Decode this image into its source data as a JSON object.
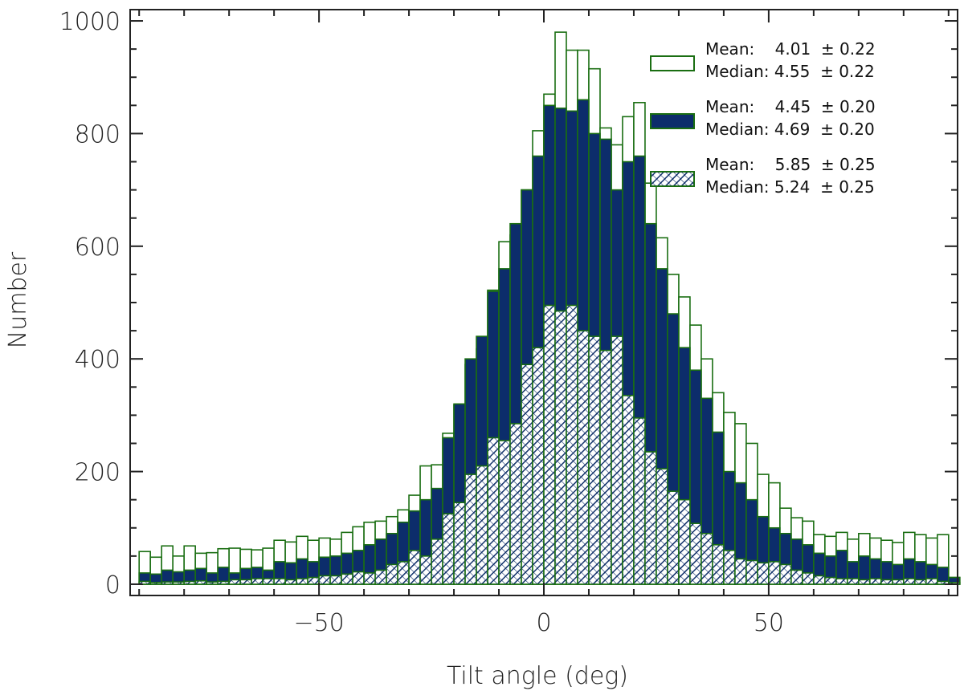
{
  "chart_data": {
    "type": "bar",
    "xlabel": "Tilt angle (deg)",
    "ylabel": "Number",
    "xlim": [
      -92,
      92
    ],
    "ylim": [
      -20,
      1020
    ],
    "xticks": [
      -50,
      0,
      50
    ],
    "yticks": [
      0,
      200,
      400,
      600,
      800,
      1000
    ],
    "xtick_labels": [
      "−50",
      "0",
      "50"
    ],
    "ytick_labels": [
      "0",
      "200",
      "400",
      "600",
      "800",
      "1000"
    ],
    "bin_width": 2.5,
    "x": [
      -88.75,
      -86.25,
      -83.75,
      -81.25,
      -78.75,
      -76.25,
      -73.75,
      -71.25,
      -68.75,
      -66.25,
      -63.75,
      -61.25,
      -58.75,
      -56.25,
      -53.75,
      -51.25,
      -48.75,
      -46.25,
      -43.75,
      -41.25,
      -38.75,
      -36.25,
      -33.75,
      -31.25,
      -28.75,
      -26.25,
      -23.75,
      -21.25,
      -18.75,
      -16.25,
      -13.75,
      -11.25,
      -8.75,
      -6.25,
      -3.75,
      -1.25,
      1.25,
      3.75,
      6.25,
      8.75,
      11.25,
      13.75,
      16.25,
      18.75,
      21.25,
      23.75,
      26.25,
      28.75,
      31.25,
      33.75,
      36.25,
      38.75,
      41.25,
      43.75,
      46.25,
      48.75,
      51.25,
      53.75,
      56.25,
      58.75,
      61.25,
      63.75,
      66.25,
      68.75,
      71.25,
      73.75,
      76.25,
      78.75,
      81.25,
      83.75,
      86.25,
      88.75,
      91.25
    ],
    "legend_placement": "top-right",
    "series": [
      {
        "fill": "open",
        "legend": [
          "Mean:    4.01  ± 0.22",
          "Median: 4.55  ± 0.22"
        ],
        "values": [
          58,
          48,
          68,
          50,
          68,
          55,
          56,
          63,
          64,
          62,
          61,
          64,
          78,
          75,
          85,
          78,
          82,
          80,
          92,
          102,
          110,
          112,
          120,
          132,
          158,
          210,
          212,
          268,
          318,
          390,
          418,
          522,
          608,
          620,
          700,
          805,
          870,
          980,
          948,
          948,
          915,
          810,
          780,
          830,
          855,
          712,
          615,
          550,
          510,
          460,
          400,
          340,
          305,
          285,
          250,
          195,
          180,
          135,
          118,
          112,
          88,
          85,
          92,
          80,
          90,
          82,
          78,
          74,
          92,
          88,
          82,
          88,
          12
        ]
      },
      {
        "fill": "solid",
        "legend": [
          "Mean:    4.45  ± 0.20",
          "Median: 4.69  ± 0.20"
        ],
        "values": [
          20,
          18,
          25,
          22,
          25,
          28,
          20,
          30,
          20,
          28,
          30,
          25,
          40,
          38,
          45,
          40,
          48,
          50,
          55,
          60,
          70,
          80,
          90,
          110,
          130,
          150,
          170,
          260,
          320,
          400,
          440,
          520,
          560,
          640,
          700,
          760,
          850,
          845,
          840,
          860,
          800,
          790,
          700,
          750,
          760,
          640,
          560,
          480,
          420,
          380,
          330,
          270,
          200,
          180,
          150,
          120,
          100,
          90,
          80,
          70,
          55,
          50,
          60,
          40,
          50,
          45,
          40,
          35,
          45,
          40,
          35,
          30,
          12
        ]
      },
      {
        "fill": "hatched",
        "legend": [
          "Mean:    5.85  ± 0.25",
          "Median: 5.24  ± 0.25"
        ],
        "values": [
          5,
          3,
          4,
          4,
          5,
          6,
          4,
          5,
          8,
          8,
          10,
          10,
          10,
          8,
          10,
          12,
          15,
          15,
          18,
          22,
          20,
          25,
          35,
          40,
          60,
          50,
          80,
          125,
          145,
          195,
          210,
          260,
          255,
          285,
          390,
          420,
          495,
          485,
          495,
          450,
          440,
          415,
          440,
          335,
          295,
          235,
          205,
          165,
          150,
          108,
          90,
          70,
          60,
          45,
          42,
          38,
          40,
          35,
          25,
          20,
          15,
          12,
          10,
          10,
          8,
          10,
          8,
          8,
          10,
          8,
          10,
          5,
          3
        ]
      }
    ]
  }
}
